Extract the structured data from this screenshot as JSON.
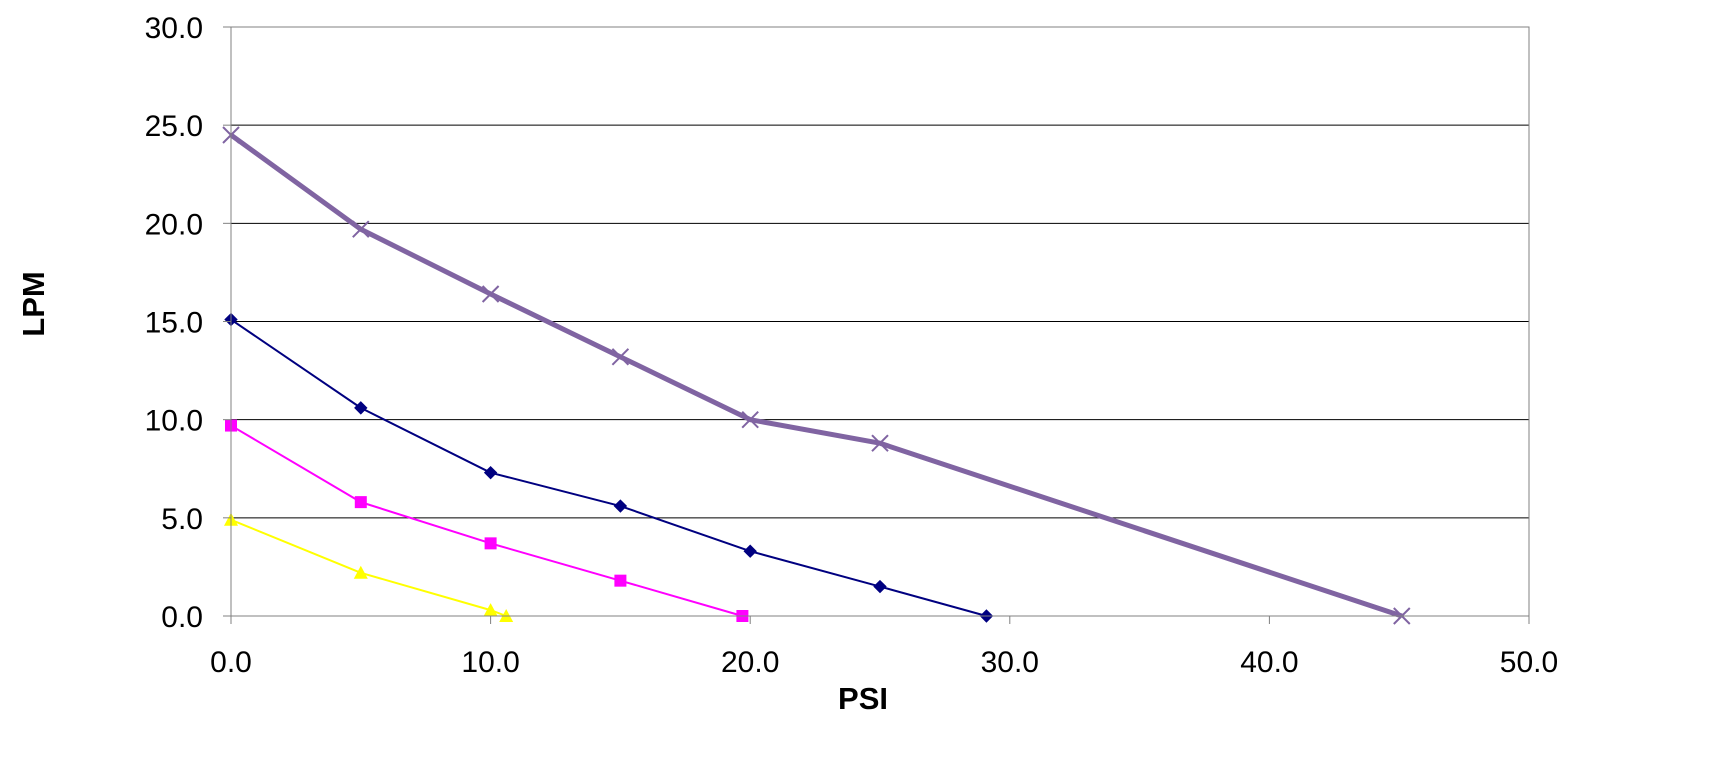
{
  "chart_data": {
    "type": "line",
    "title": "",
    "xlabel": "PSI",
    "ylabel": "LPM",
    "xlim": [
      0,
      50
    ],
    "ylim": [
      0,
      30
    ],
    "x_ticks": [
      "0.0",
      "10.0",
      "20.0",
      "30.0",
      "40.0",
      "50.0"
    ],
    "y_ticks": [
      "0.0",
      "5.0",
      "10.0",
      "15.0",
      "20.0",
      "25.0",
      "30.0"
    ],
    "grid": "horizontal",
    "legend": "none",
    "series": [
      {
        "color": "#000080",
        "marker": "diamond",
        "points": [
          [
            0,
            15.1
          ],
          [
            5,
            10.6
          ],
          [
            10,
            7.3
          ],
          [
            15,
            5.6
          ],
          [
            20,
            3.3
          ],
          [
            25,
            1.5
          ],
          [
            29.1,
            0
          ]
        ]
      },
      {
        "color": "#ff00ff",
        "marker": "square",
        "points": [
          [
            0,
            9.7
          ],
          [
            5,
            5.8
          ],
          [
            10,
            3.7
          ],
          [
            15,
            1.8
          ],
          [
            19.7,
            0
          ]
        ]
      },
      {
        "color": "#ffff00",
        "marker": "triangle",
        "points": [
          [
            0,
            4.9
          ],
          [
            5,
            2.2
          ],
          [
            10,
            0.3
          ],
          [
            10.6,
            0
          ]
        ]
      },
      {
        "color": "#8064a2",
        "marker": "x",
        "points": [
          [
            0,
            24.5
          ],
          [
            5,
            19.7
          ],
          [
            10,
            16.4
          ],
          [
            15,
            13.2
          ],
          [
            20,
            10.0
          ],
          [
            25,
            8.8
          ],
          [
            45.1,
            0
          ]
        ]
      }
    ]
  }
}
